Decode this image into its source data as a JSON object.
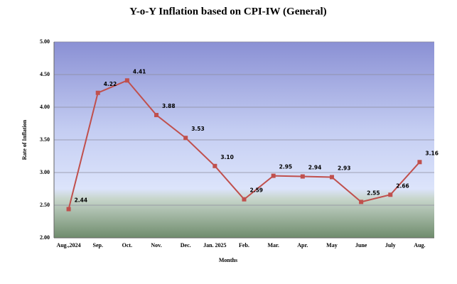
{
  "chart_data": {
    "type": "line",
    "title": "Y-o-Y Inflation based on CPI-IW (General)",
    "x_label": "Months",
    "y_label": "Rate of Inflation",
    "categories": [
      "Aug.,2024",
      "Sep.",
      "Oct.",
      "Nov.",
      "Dec.",
      "Jan. 2025",
      "Feb.",
      "Mar.",
      "Apr.",
      "May",
      "June",
      "July",
      "Aug."
    ],
    "values": [
      2.44,
      4.22,
      4.41,
      3.88,
      3.53,
      3.1,
      2.59,
      2.95,
      2.94,
      2.93,
      2.55,
      2.66,
      3.16
    ],
    "value_labels": [
      "2.44",
      "4.22",
      "4.41",
      "3.88",
      "3.53",
      "3.10",
      "2.59",
      "2.95",
      "2.94",
      "2.93",
      "2.55",
      "2.66",
      "3.16"
    ],
    "color": "#c0504d",
    "ylim": [
      2,
      5
    ],
    "yticks": [
      {
        "value": 2,
        "label": "2.00"
      },
      {
        "value": 2.5,
        "label": "2.50"
      },
      {
        "value": 3,
        "label": "3.00"
      },
      {
        "value": 3.5,
        "label": "3.50"
      },
      {
        "value": 4,
        "label": "4.00"
      },
      {
        "value": 4.5,
        "label": "4.50"
      },
      {
        "value": 5,
        "label": "5.00"
      }
    ],
    "grid": true
  }
}
